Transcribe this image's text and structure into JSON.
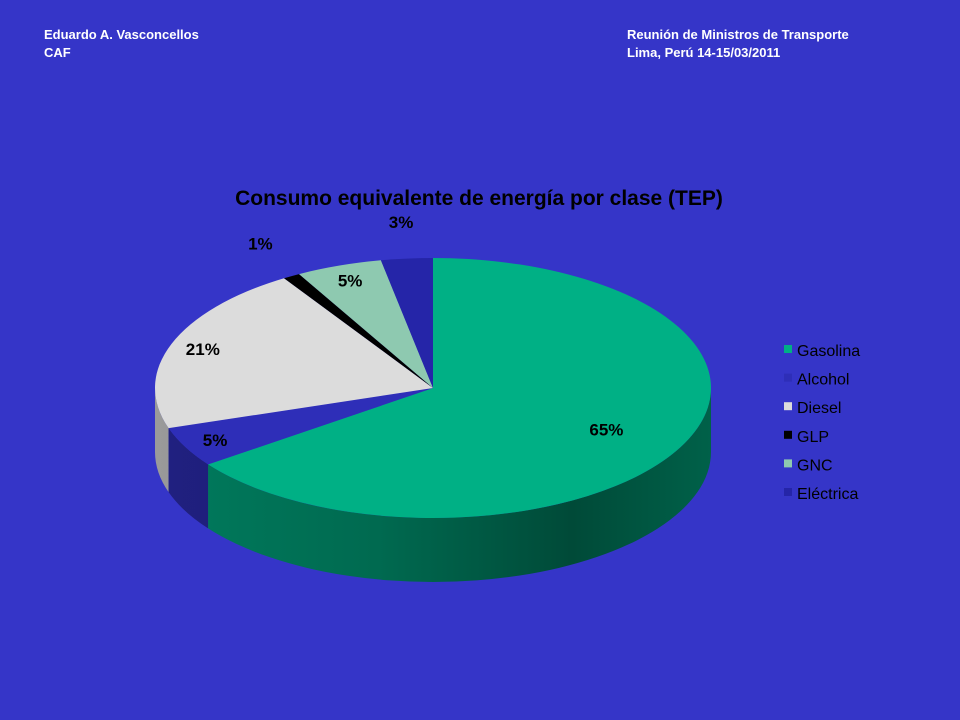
{
  "header": {
    "author": "Eduardo A. Vasconcellos",
    "org": "CAF",
    "event": "Reunión de Ministros  de Transporte",
    "place_date": "Lima, Perú 14-15/03/2011"
  },
  "colors": {
    "background": "#3535c8",
    "Gasolina": "#00b085",
    "Alcohol": "#2e2eb8",
    "Diesel": "#dcdcdc",
    "GLP": "#000000",
    "GNC": "#8ec9b0",
    "Eléctrica": "#2525a8"
  },
  "chart_data": {
    "type": "pie",
    "title": "Consumo equivalente de energía por clase (TEP)",
    "categories": [
      "Gasolina",
      "Alcohol",
      "Diesel",
      "GLP",
      "GNC",
      "Eléctrica"
    ],
    "values": [
      65,
      5,
      21,
      1,
      5,
      3
    ],
    "data_labels": [
      "65%",
      "5%",
      "21%",
      "1%",
      "5%",
      "3%"
    ],
    "legend_position": "right",
    "three_d": true
  }
}
